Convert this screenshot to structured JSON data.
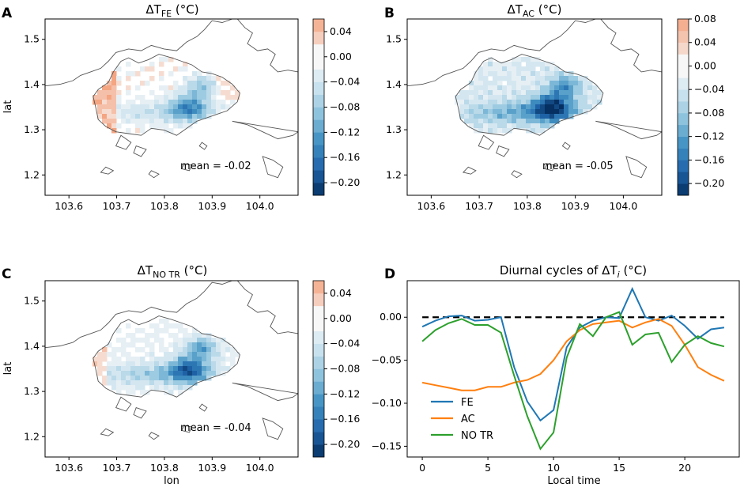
{
  "chart_data": [
    {
      "type": "heatmap",
      "panel": "A",
      "title_symbol": "ΔT",
      "title_subscript": "FE",
      "title_unit": "(°C)",
      "xlabel": "",
      "ylabel": "lat",
      "xlim": [
        103.55,
        104.08
      ],
      "ylim": [
        1.155,
        1.545
      ],
      "xticks": [
        "103.6",
        "103.7",
        "103.8",
        "103.9",
        "104.0"
      ],
      "yticks": [
        "1.2",
        "1.3",
        "1.4",
        "1.5"
      ],
      "annotation": "mean = -0.02",
      "colorbar": {
        "min": -0.22,
        "max": 0.06,
        "step": 0.02,
        "ticks": [
          0.04,
          0.0,
          -0.04,
          -0.08,
          -0.12,
          -0.16,
          -0.2
        ],
        "tick_labels": [
          "0.04",
          "0.00",
          "−0.04",
          "−0.08",
          "−0.12",
          "−0.16",
          "−0.20"
        ]
      }
    },
    {
      "type": "heatmap",
      "panel": "B",
      "title_symbol": "ΔT",
      "title_subscript": "AC",
      "title_unit": "(°C)",
      "xlabel": "",
      "ylabel": "",
      "xlim": [
        103.55,
        104.08
      ],
      "ylim": [
        1.155,
        1.545
      ],
      "xticks": [
        "103.6",
        "103.7",
        "103.8",
        "103.9",
        "104.0"
      ],
      "yticks": [
        "1.2",
        "1.3",
        "1.4",
        "1.5"
      ],
      "annotation": "mean = -0.05",
      "colorbar": {
        "min": -0.22,
        "max": 0.08,
        "step": 0.02,
        "ticks": [
          0.08,
          0.04,
          0.0,
          -0.04,
          -0.08,
          -0.12,
          -0.16,
          -0.2
        ],
        "tick_labels": [
          "0.08",
          "0.04",
          "0.00",
          "−0.04",
          "−0.08",
          "−0.12",
          "−0.16",
          "−0.20"
        ]
      }
    },
    {
      "type": "heatmap",
      "panel": "C",
      "title_symbol": "ΔT",
      "title_subscript": "NO TR",
      "title_unit": "(°C)",
      "xlabel": "lon",
      "ylabel": "lat",
      "xlim": [
        103.55,
        104.08
      ],
      "ylim": [
        1.155,
        1.545
      ],
      "xticks": [
        "103.6",
        "103.7",
        "103.8",
        "103.9",
        "104.0"
      ],
      "yticks": [
        "1.2",
        "1.3",
        "1.4",
        "1.5"
      ],
      "annotation": "mean = -0.04",
      "colorbar": {
        "min": -0.22,
        "max": 0.06,
        "step": 0.02,
        "ticks": [
          0.04,
          0.0,
          -0.04,
          -0.08,
          -0.12,
          -0.16,
          -0.2
        ],
        "tick_labels": [
          "0.04",
          "0.00",
          "−0.04",
          "−0.08",
          "−0.12",
          "−0.16",
          "−0.20"
        ]
      }
    },
    {
      "type": "line",
      "panel": "D",
      "title_prefix": "Diurnal cycles of ΔT",
      "title_subscript": "i",
      "title_unit": "(°C)",
      "xlabel": "Local time",
      "ylabel": "",
      "xlim": [
        -1.15,
        24.15
      ],
      "ylim": [
        -0.1625,
        0.0425
      ],
      "xticks": [
        0,
        5,
        10,
        15,
        20
      ],
      "yticks": [
        0.0,
        -0.05,
        -0.1,
        -0.15
      ],
      "ytick_labels": [
        "0.00",
        "−0.05",
        "−0.10",
        "−0.15"
      ],
      "x": [
        0,
        1,
        2,
        3,
        4,
        5,
        6,
        7,
        8,
        9,
        10,
        11,
        12,
        13,
        14,
        15,
        16,
        17,
        18,
        19,
        20,
        21,
        22,
        23
      ],
      "reference_line": 0,
      "series": [
        {
          "name": "FE",
          "color": "#1f77b4",
          "values": [
            -0.011,
            -0.004,
            0.001,
            0.002,
            -0.004,
            -0.003,
            0.0,
            -0.058,
            -0.098,
            -0.12,
            -0.108,
            -0.035,
            -0.012,
            -0.004,
            0.0,
            -0.001,
            0.033,
            0.0,
            -0.004,
            0.002,
            -0.01,
            -0.025,
            -0.014,
            -0.012
          ]
        },
        {
          "name": "AC",
          "color": "#ff7f0e",
          "values": [
            -0.076,
            -0.079,
            -0.082,
            -0.085,
            -0.085,
            -0.081,
            -0.081,
            -0.076,
            -0.073,
            -0.066,
            -0.05,
            -0.028,
            -0.015,
            -0.008,
            -0.006,
            -0.004,
            -0.012,
            -0.006,
            -0.002,
            -0.01,
            -0.032,
            -0.058,
            -0.067,
            -0.074
          ]
        },
        {
          "name": "NO TR",
          "color": "#2ca02c",
          "values": [
            -0.028,
            -0.015,
            -0.007,
            -0.002,
            -0.009,
            -0.009,
            -0.018,
            -0.068,
            -0.115,
            -0.153,
            -0.134,
            -0.047,
            -0.008,
            -0.022,
            0.0,
            0.006,
            -0.032,
            -0.02,
            -0.018,
            -0.052,
            -0.032,
            -0.022,
            -0.03,
            -0.034
          ]
        }
      ]
    }
  ]
}
